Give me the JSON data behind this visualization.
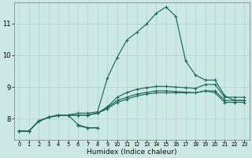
{
  "xlabel": "Humidex (Indice chaleur)",
  "bg_color": "#cce8e5",
  "grid_color": "#aad4d0",
  "line_color": "#1a6b5a",
  "xlim": [
    -0.5,
    23.5
  ],
  "ylim": [
    7.35,
    11.65
  ],
  "yticks": [
    8,
    9,
    10,
    11
  ],
  "xticks": [
    0,
    1,
    2,
    3,
    4,
    5,
    6,
    7,
    8,
    9,
    10,
    11,
    12,
    13,
    14,
    15,
    16,
    17,
    18,
    19,
    20,
    21,
    22,
    23
  ],
  "series": [
    {
      "x": [
        0,
        1,
        2,
        3,
        4,
        5,
        6,
        7,
        8
      ],
      "y": [
        7.62,
        7.62,
        7.93,
        8.05,
        8.1,
        8.12,
        7.82,
        7.72,
        7.72
      ]
    },
    {
      "x": [
        6,
        7,
        8
      ],
      "y": [
        7.78,
        7.72,
        7.72
      ]
    },
    {
      "x": [
        0,
        1,
        2,
        3,
        4,
        5,
        6,
        7,
        8,
        9,
        10,
        11,
        12,
        13,
        14,
        15,
        16,
        17,
        18,
        19,
        20,
        21,
        22,
        23
      ],
      "y": [
        7.62,
        7.62,
        7.93,
        8.05,
        8.12,
        8.12,
        8.12,
        8.12,
        8.18,
        8.32,
        8.52,
        8.62,
        8.72,
        8.78,
        8.82,
        8.82,
        8.82,
        8.82,
        8.82,
        8.88,
        8.82,
        8.52,
        8.52,
        8.52
      ]
    },
    {
      "x": [
        0,
        1,
        2,
        3,
        4,
        5,
        6,
        7,
        8,
        9,
        10,
        11,
        12,
        13,
        14,
        15,
        16,
        17,
        18,
        19,
        20,
        21,
        22,
        23
      ],
      "y": [
        7.62,
        7.62,
        7.93,
        8.05,
        8.12,
        8.12,
        8.12,
        8.12,
        8.18,
        8.35,
        8.58,
        8.68,
        8.78,
        8.83,
        8.88,
        8.88,
        8.86,
        8.84,
        8.82,
        8.88,
        8.88,
        8.58,
        8.58,
        8.58
      ]
    },
    {
      "x": [
        0,
        1,
        2,
        3,
        4,
        5,
        6,
        7,
        8,
        9,
        10,
        11,
        12,
        13,
        14,
        15,
        16,
        17,
        18,
        19,
        20,
        21,
        22,
        23
      ],
      "y": [
        7.62,
        7.62,
        7.93,
        8.05,
        8.12,
        8.12,
        8.12,
        8.12,
        8.18,
        8.38,
        8.68,
        8.83,
        8.93,
        8.98,
        9.02,
        9.02,
        9.0,
        8.98,
        8.96,
        9.08,
        9.08,
        8.68,
        8.68,
        8.68
      ]
    },
    {
      "x": [
        0,
        1,
        2,
        3,
        4,
        5,
        6,
        7,
        8,
        9,
        10,
        11,
        12,
        13,
        14,
        15,
        16,
        17,
        18,
        19,
        20,
        21,
        22,
        23
      ],
      "y": [
        7.62,
        7.62,
        7.93,
        8.05,
        8.12,
        8.12,
        8.18,
        8.18,
        8.22,
        9.28,
        9.93,
        10.48,
        10.72,
        10.98,
        11.32,
        11.52,
        11.22,
        9.82,
        9.38,
        9.22,
        9.22,
        8.72,
        8.58,
        8.58
      ]
    }
  ]
}
